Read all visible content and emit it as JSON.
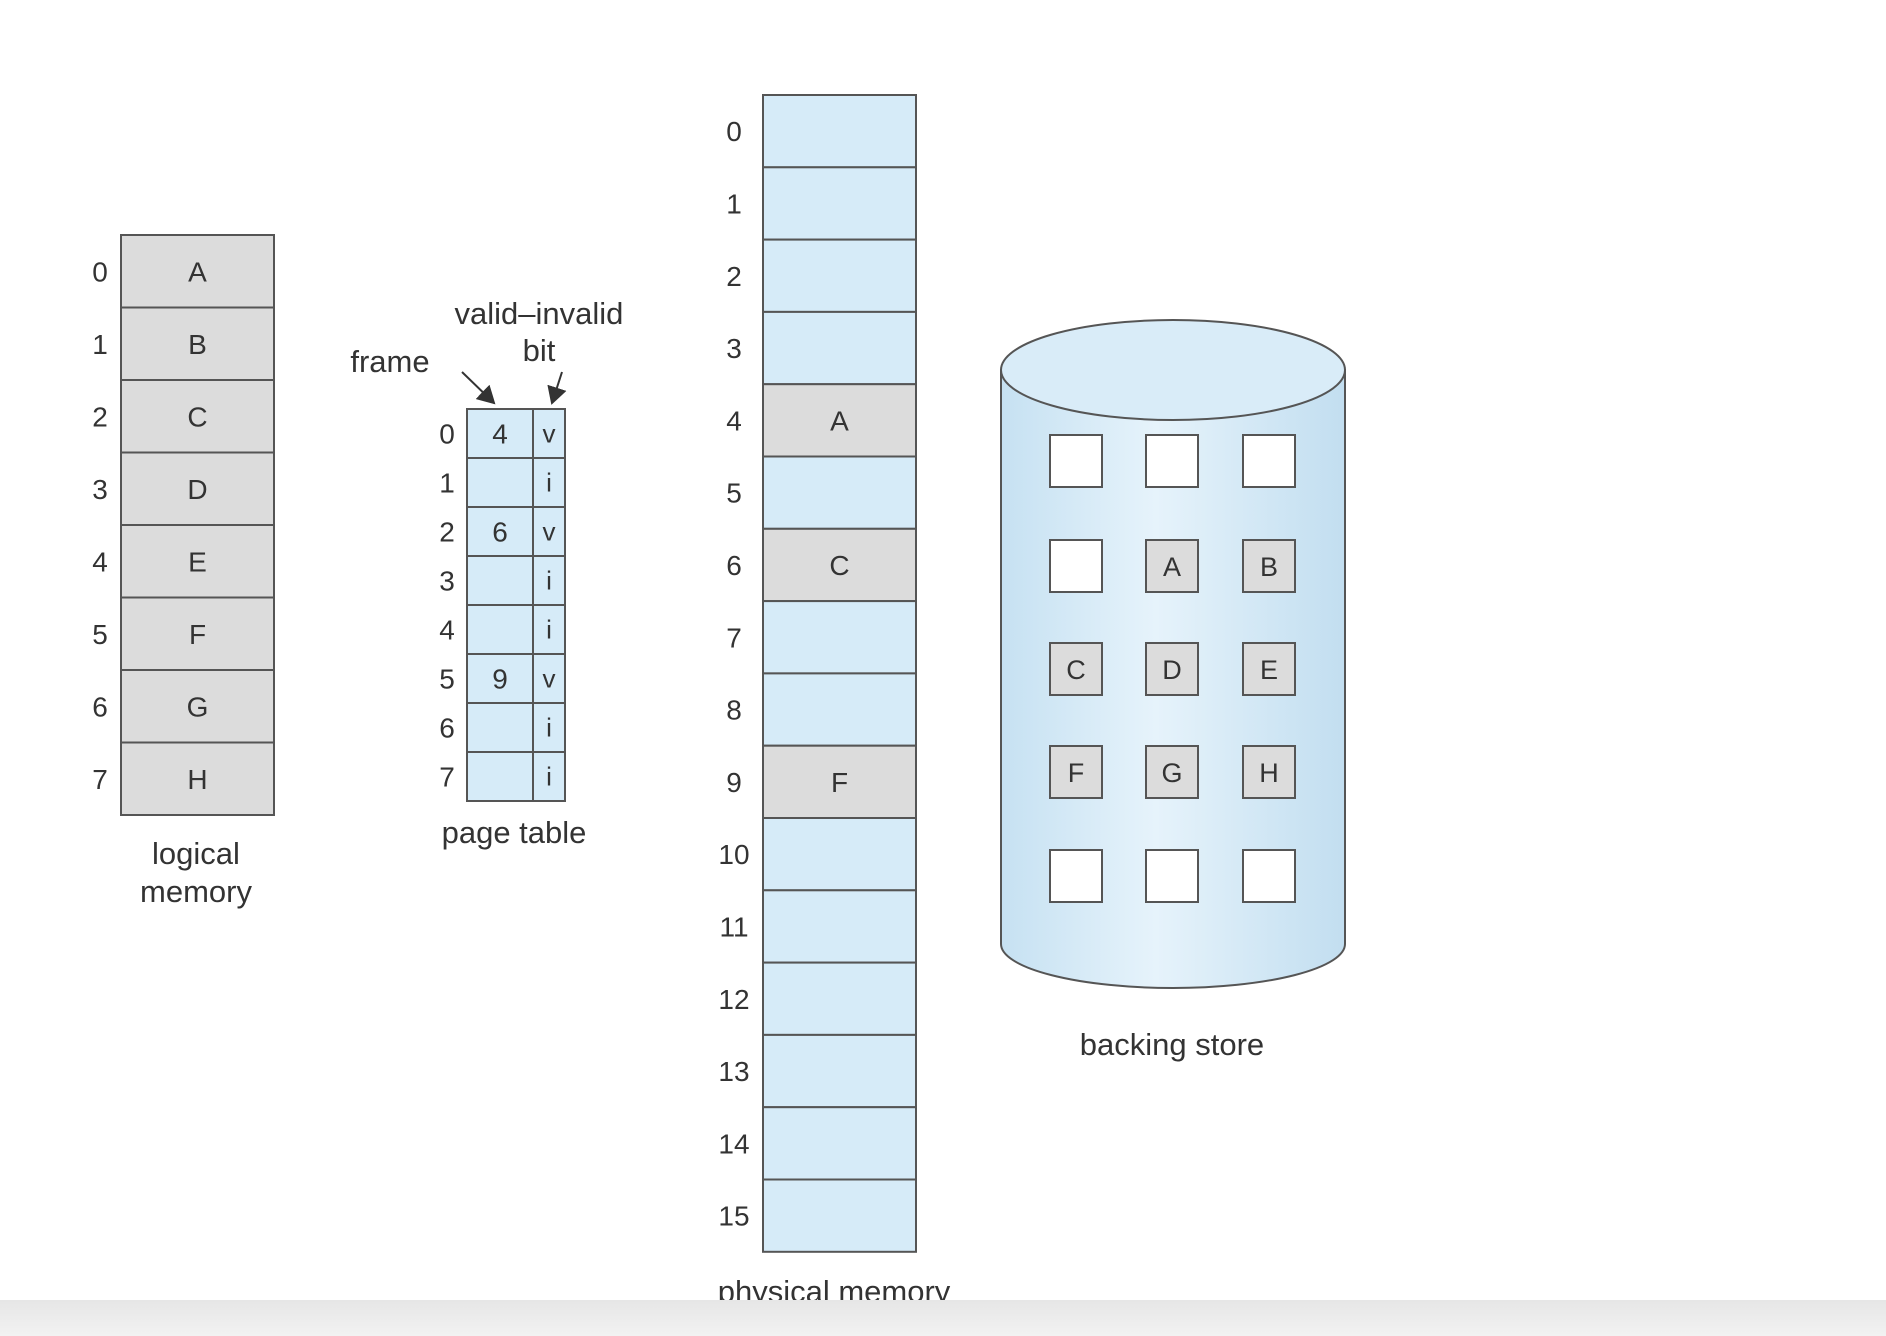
{
  "logical_memory": {
    "label_line1": "logical",
    "label_line2": "memory",
    "pages": [
      {
        "index": "0",
        "content": "A"
      },
      {
        "index": "1",
        "content": "B"
      },
      {
        "index": "2",
        "content": "C"
      },
      {
        "index": "3",
        "content": "D"
      },
      {
        "index": "4",
        "content": "E"
      },
      {
        "index": "5",
        "content": "F"
      },
      {
        "index": "6",
        "content": "G"
      },
      {
        "index": "7",
        "content": "H"
      }
    ]
  },
  "page_table": {
    "label": "page table",
    "frame_label": "frame",
    "valid_invalid_label_line1": "valid–invalid",
    "valid_invalid_label_line2": "bit",
    "entries": [
      {
        "index": "0",
        "frame": "4",
        "bit": "v"
      },
      {
        "index": "1",
        "frame": "",
        "bit": "i"
      },
      {
        "index": "2",
        "frame": "6",
        "bit": "v"
      },
      {
        "index": "3",
        "frame": "",
        "bit": "i"
      },
      {
        "index": "4",
        "frame": "",
        "bit": "i"
      },
      {
        "index": "5",
        "frame": "9",
        "bit": "v"
      },
      {
        "index": "6",
        "frame": "",
        "bit": "i"
      },
      {
        "index": "7",
        "frame": "",
        "bit": "i"
      }
    ]
  },
  "physical_memory": {
    "label": "physical memory",
    "frames": [
      {
        "index": "0",
        "content": ""
      },
      {
        "index": "1",
        "content": ""
      },
      {
        "index": "2",
        "content": ""
      },
      {
        "index": "3",
        "content": ""
      },
      {
        "index": "4",
        "content": "A"
      },
      {
        "index": "5",
        "content": ""
      },
      {
        "index": "6",
        "content": "C"
      },
      {
        "index": "7",
        "content": ""
      },
      {
        "index": "8",
        "content": ""
      },
      {
        "index": "9",
        "content": "F"
      },
      {
        "index": "10",
        "content": ""
      },
      {
        "index": "11",
        "content": ""
      },
      {
        "index": "12",
        "content": ""
      },
      {
        "index": "13",
        "content": ""
      },
      {
        "index": "14",
        "content": ""
      },
      {
        "index": "15",
        "content": ""
      }
    ]
  },
  "backing_store": {
    "label": "backing store",
    "rows": [
      [
        "",
        "",
        ""
      ],
      [
        "",
        "A",
        "B"
      ],
      [
        "C",
        "D",
        "E"
      ],
      [
        "F",
        "G",
        "H"
      ],
      [
        "",
        "",
        ""
      ]
    ]
  },
  "colors": {
    "occupied_fill": "#dcdcdc",
    "free_fill": "#d6ebf8",
    "stroke": "#555555",
    "text": "#333333"
  }
}
